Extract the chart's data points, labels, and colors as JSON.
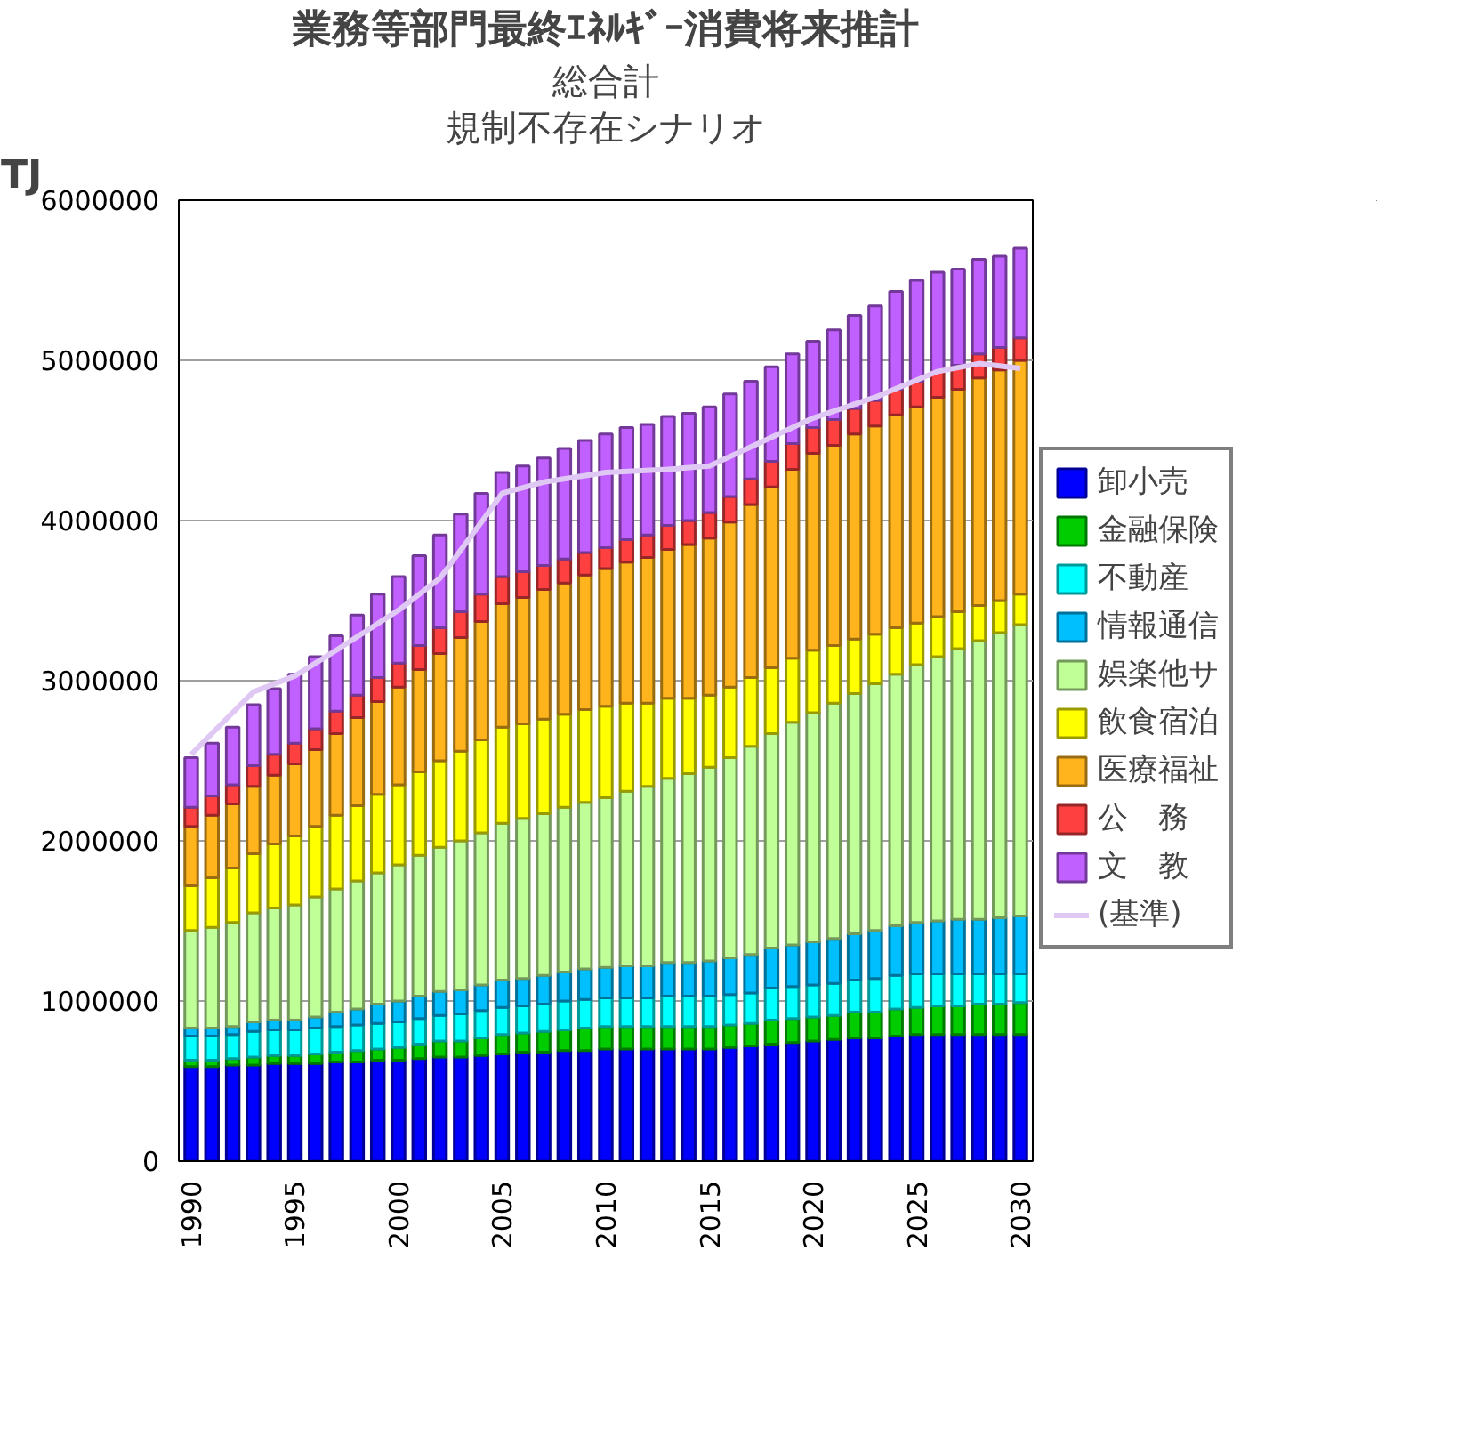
{
  "chart_data": {
    "type": "bar",
    "stacked": true,
    "title": "業務等部門最終ｴﾈﾙｷﾞｰ消費将来推計",
    "subtitle": "総合計",
    "annotations": [
      "規制不存在シナリオ"
    ],
    "ylabel": "TJ",
    "x": [
      1990,
      1991,
      1992,
      1993,
      1994,
      1995,
      1996,
      1997,
      1998,
      1999,
      2000,
      2001,
      2002,
      2003,
      2004,
      2005,
      2006,
      2007,
      2008,
      2009,
      2010,
      2011,
      2012,
      2013,
      2014,
      2015,
      2016,
      2017,
      2018,
      2019,
      2020,
      2021,
      2022,
      2023,
      2024,
      2025,
      2026,
      2027,
      2028,
      2029,
      2030
    ],
    "xlim": [
      1989.4,
      2030.6
    ],
    "xticks": [
      1990,
      1995,
      2000,
      2005,
      2010,
      2015,
      2020,
      2025,
      2030
    ],
    "ylim": [
      0,
      6000000
    ],
    "yticks": [
      0,
      1000000,
      2000000,
      3000000,
      4000000,
      5000000,
      6000000
    ],
    "grid": "y",
    "legend": "right",
    "series": [
      {
        "name": "卸小売",
        "color": "#0000ff",
        "values": [
          590000,
          590000,
          600000,
          600000,
          610000,
          610000,
          610000,
          620000,
          620000,
          630000,
          630000,
          640000,
          650000,
          650000,
          660000,
          670000,
          680000,
          680000,
          690000,
          690000,
          700000,
          700000,
          700000,
          700000,
          700000,
          700000,
          710000,
          720000,
          730000,
          740000,
          750000,
          760000,
          770000,
          770000,
          780000,
          790000,
          790000,
          790000,
          790000,
          790000,
          790000
        ]
      },
      {
        "name": "金融保険",
        "color": "#00cc00",
        "values": [
          40000,
          40000,
          40000,
          50000,
          50000,
          50000,
          60000,
          60000,
          70000,
          70000,
          80000,
          90000,
          100000,
          100000,
          110000,
          120000,
          120000,
          130000,
          130000,
          140000,
          140000,
          140000,
          140000,
          140000,
          140000,
          140000,
          140000,
          140000,
          150000,
          150000,
          150000,
          150000,
          160000,
          160000,
          170000,
          170000,
          180000,
          180000,
          190000,
          190000,
          200000
        ]
      },
      {
        "name": "不動産",
        "color": "#00ffff",
        "values": [
          150000,
          150000,
          150000,
          160000,
          160000,
          160000,
          160000,
          160000,
          160000,
          160000,
          160000,
          160000,
          160000,
          170000,
          170000,
          170000,
          170000,
          170000,
          180000,
          180000,
          180000,
          180000,
          180000,
          190000,
          190000,
          190000,
          190000,
          190000,
          200000,
          200000,
          200000,
          200000,
          200000,
          210000,
          210000,
          210000,
          200000,
          200000,
          190000,
          190000,
          180000
        ]
      },
      {
        "name": "情報通信",
        "color": "#00bfff",
        "values": [
          50000,
          50000,
          50000,
          60000,
          60000,
          60000,
          70000,
          90000,
          100000,
          120000,
          130000,
          140000,
          150000,
          150000,
          160000,
          170000,
          170000,
          180000,
          180000,
          190000,
          190000,
          200000,
          200000,
          210000,
          210000,
          220000,
          230000,
          240000,
          250000,
          260000,
          270000,
          280000,
          290000,
          300000,
          310000,
          320000,
          330000,
          340000,
          340000,
          350000,
          360000
        ]
      },
      {
        "name": "娯楽他サ",
        "color": "#c0ff98",
        "values": [
          610000,
          630000,
          650000,
          680000,
          700000,
          720000,
          750000,
          770000,
          800000,
          820000,
          850000,
          880000,
          900000,
          930000,
          950000,
          980000,
          1000000,
          1010000,
          1030000,
          1040000,
          1060000,
          1090000,
          1120000,
          1150000,
          1180000,
          1210000,
          1250000,
          1300000,
          1340000,
          1390000,
          1430000,
          1470000,
          1500000,
          1540000,
          1570000,
          1610000,
          1650000,
          1690000,
          1740000,
          1780000,
          1820000
        ]
      },
      {
        "name": "飲食宿泊",
        "color": "#ffff00",
        "values": [
          280000,
          310000,
          340000,
          370000,
          400000,
          430000,
          440000,
          460000,
          470000,
          490000,
          500000,
          520000,
          540000,
          560000,
          580000,
          600000,
          590000,
          590000,
          580000,
          580000,
          570000,
          550000,
          520000,
          500000,
          470000,
          450000,
          440000,
          430000,
          410000,
          400000,
          390000,
          360000,
          340000,
          310000,
          290000,
          260000,
          250000,
          230000,
          220000,
          200000,
          190000
        ]
      },
      {
        "name": "医療福祉",
        "color": "#ffb41e",
        "values": [
          370000,
          390000,
          400000,
          420000,
          430000,
          450000,
          480000,
          510000,
          550000,
          580000,
          610000,
          640000,
          670000,
          710000,
          740000,
          770000,
          790000,
          810000,
          820000,
          840000,
          860000,
          880000,
          910000,
          930000,
          960000,
          980000,
          1030000,
          1080000,
          1130000,
          1180000,
          1230000,
          1250000,
          1280000,
          1300000,
          1330000,
          1350000,
          1370000,
          1390000,
          1420000,
          1440000,
          1460000
        ]
      },
      {
        "name": "公　務",
        "color": "#ff4040",
        "values": [
          120000,
          120000,
          120000,
          130000,
          130000,
          130000,
          130000,
          140000,
          140000,
          150000,
          150000,
          150000,
          160000,
          160000,
          170000,
          170000,
          160000,
          150000,
          150000,
          140000,
          130000,
          140000,
          140000,
          150000,
          150000,
          160000,
          160000,
          160000,
          160000,
          160000,
          160000,
          160000,
          160000,
          160000,
          160000,
          160000,
          160000,
          150000,
          150000,
          140000,
          140000
        ]
      },
      {
        "name": "文　教",
        "color": "#c060ff",
        "values": [
          310000,
          330000,
          360000,
          380000,
          410000,
          430000,
          450000,
          470000,
          500000,
          520000,
          540000,
          560000,
          580000,
          610000,
          630000,
          650000,
          660000,
          670000,
          690000,
          700000,
          710000,
          700000,
          690000,
          680000,
          670000,
          660000,
          640000,
          610000,
          590000,
          560000,
          540000,
          560000,
          580000,
          590000,
          610000,
          630000,
          620000,
          600000,
          590000,
          570000,
          560000
        ]
      },
      {
        "name": "(基準)",
        "type": "line",
        "color": "#e0c8f4",
        "x": [
          1990,
          1993,
          1995,
          1997,
          2000,
          2002,
          2004,
          2005,
          2007,
          2010,
          2013,
          2015,
          2017,
          2020,
          2023,
          2026,
          2028,
          2030
        ],
        "values": [
          2540000,
          2930000,
          3030000,
          3190000,
          3440000,
          3640000,
          3990000,
          4170000,
          4240000,
          4300000,
          4320000,
          4340000,
          4460000,
          4640000,
          4770000,
          4930000,
          4980000,
          4950000
        ]
      }
    ]
  }
}
